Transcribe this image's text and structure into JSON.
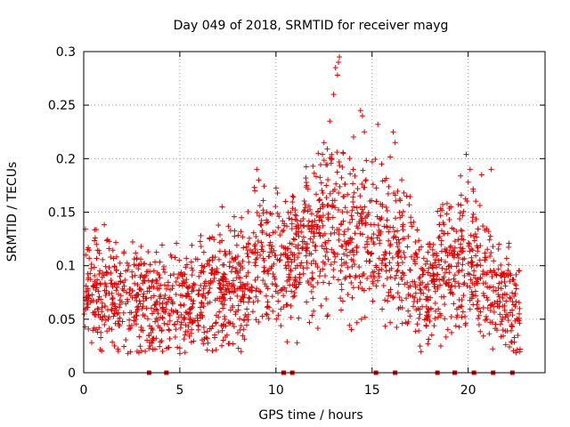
{
  "chart_data": {
    "type": "scatter",
    "title": "Day 049 of 2018, SRMTID for receiver mayg",
    "xlabel": "GPS time / hours",
    "ylabel": "SRMTID / TECUs",
    "xlim": [
      0,
      24
    ],
    "ylim": [
      0,
      0.3
    ],
    "x_ticks": [
      0,
      5,
      10,
      15,
      20
    ],
    "x_tick_labels": [
      "0",
      "5",
      "10",
      "15",
      "20"
    ],
    "y_ticks": [
      0,
      0.05,
      0.1,
      0.15,
      0.2,
      0.25,
      0.3
    ],
    "y_tick_labels": [
      "0",
      "0.05",
      "0.1",
      "0.15",
      "0.2",
      "0.25",
      "0.3"
    ],
    "grid": true,
    "marker": "+",
    "color": "#e00000",
    "series": [
      {
        "name": "SRMTID",
        "trend": [
          [
            0,
            0.075
          ],
          [
            1,
            0.072
          ],
          [
            2,
            0.066
          ],
          [
            2.8,
            0.08
          ],
          [
            3.5,
            0.06
          ],
          [
            4.5,
            0.065
          ],
          [
            5.5,
            0.07
          ],
          [
            6.5,
            0.075
          ],
          [
            7.5,
            0.075
          ],
          [
            8.5,
            0.085
          ],
          [
            9.2,
            0.11
          ],
          [
            10,
            0.1
          ],
          [
            11,
            0.11
          ],
          [
            12,
            0.125
          ],
          [
            13,
            0.145
          ],
          [
            14,
            0.135
          ],
          [
            15,
            0.12
          ],
          [
            16,
            0.115
          ],
          [
            17,
            0.1
          ],
          [
            17.8,
            0.075
          ],
          [
            18.5,
            0.1
          ],
          [
            19.3,
            0.095
          ],
          [
            20,
            0.11
          ],
          [
            21,
            0.09
          ],
          [
            21.8,
            0.07
          ],
          [
            22.6,
            0.055
          ]
        ],
        "points": [
          [
            0.1,
            0.11
          ],
          [
            0.2,
            0.115
          ],
          [
            0.5,
            0.08
          ],
          [
            0.6,
            0.126
          ],
          [
            1.4,
            0.108
          ],
          [
            1.6,
            0.025
          ],
          [
            1.8,
            0.02
          ],
          [
            2.1,
            0.113
          ],
          [
            3.2,
            0.02
          ],
          [
            3.4,
            0.035
          ],
          [
            4.1,
            0.02
          ],
          [
            5.0,
            0.018
          ],
          [
            7.2,
            0.155
          ],
          [
            8.9,
            0.17
          ],
          [
            9.0,
            0.19
          ],
          [
            9.1,
            0.18
          ],
          [
            9.5,
            0.14
          ],
          [
            10.5,
            0.16
          ],
          [
            11.1,
            0.028
          ],
          [
            11.6,
            0.175
          ],
          [
            12.2,
            0.205
          ],
          [
            12.5,
            0.215
          ],
          [
            12.8,
            0.235
          ],
          [
            13.0,
            0.26
          ],
          [
            13.1,
            0.285
          ],
          [
            13.2,
            0.278
          ],
          [
            13.25,
            0.29
          ],
          [
            13.3,
            0.295
          ],
          [
            12.9,
            0.2
          ],
          [
            13.5,
            0.205
          ],
          [
            14.4,
            0.245
          ],
          [
            14.5,
            0.24
          ],
          [
            14.6,
            0.225
          ],
          [
            15.3,
            0.232
          ],
          [
            15.5,
            0.195
          ],
          [
            16.1,
            0.225
          ],
          [
            16.2,
            0.215
          ],
          [
            16.8,
            0.165
          ],
          [
            18.9,
            0.158
          ],
          [
            19.1,
            0.155
          ],
          [
            19.9,
            0.204
          ],
          [
            20.1,
            0.19
          ],
          [
            20.0,
            0.178
          ],
          [
            20.7,
            0.185
          ],
          [
            21.2,
            0.19
          ],
          [
            21.6,
            0.12
          ],
          [
            22.7,
            0.022
          ]
        ]
      }
    ],
    "gap_markers_x": [
      3.4,
      4.3,
      10.4,
      10.85,
      15.2,
      16.2,
      18.4,
      19.3,
      20.3,
      21.3,
      22.3
    ],
    "gap_marker_y": 0
  }
}
